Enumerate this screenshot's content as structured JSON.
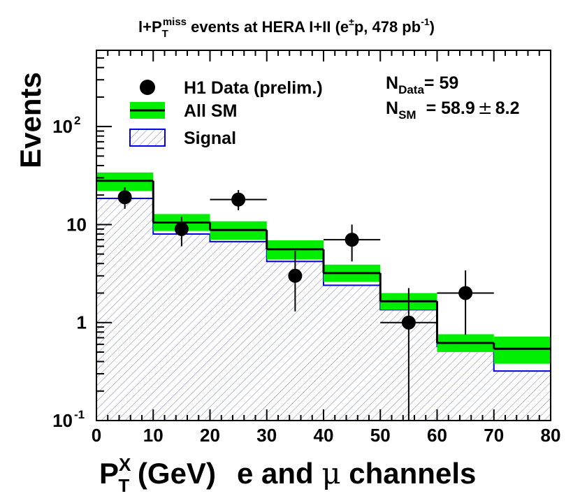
{
  "chart_data": {
    "type": "histogram",
    "title": {
      "pre": "l+P",
      "pt_sub": "T",
      "pt_sup": "miss",
      "mid": " events at HERA I+II (e",
      "pm": "±",
      "mid2": "p, 478 pb",
      "sup": "-1",
      "end": ")"
    },
    "ylabel": "Events",
    "xlabel": {
      "P": "P",
      "sup": "X",
      "sub": "T",
      "unit": " (GeV)",
      "channel_pre": "e and ",
      "mu": "μ",
      "channel_post": " channels"
    },
    "xlim": [
      0,
      80
    ],
    "ylim": [
      0.1,
      600
    ],
    "yscale": "log",
    "x_tick_labels": [
      "0",
      "10",
      "20",
      "30",
      "40",
      "50",
      "60",
      "70",
      "80"
    ],
    "y_tick_labels": [
      {
        "value": 0.1,
        "base": "10",
        "exp": "-1"
      },
      {
        "value": 1,
        "base": "1",
        "exp": ""
      },
      {
        "value": 10,
        "base": "10",
        "exp": ""
      },
      {
        "value": 100,
        "base": "10",
        "exp": "2"
      }
    ],
    "bin_edges": [
      0,
      10,
      20,
      30,
      40,
      50,
      60,
      70,
      80
    ],
    "all_sm": [
      28,
      10.5,
      8.8,
      5.6,
      3.2,
      1.65,
      0.62,
      0.54
    ],
    "all_sm_err_low": [
      22,
      8.6,
      7.0,
      4.4,
      2.6,
      1.35,
      0.5,
      0.38
    ],
    "all_sm_err_high": [
      34,
      12.8,
      10.8,
      6.9,
      3.9,
      2.0,
      0.76,
      0.72
    ],
    "signal": [
      18.5,
      8.0,
      6.7,
      4.2,
      2.4,
      1.35,
      0.57,
      0.32
    ],
    "data": {
      "x": [
        5,
        15,
        25,
        35,
        45,
        55,
        65
      ],
      "y": [
        19,
        9,
        18,
        3,
        7,
        1,
        2
      ],
      "y_low": [
        14.5,
        6.0,
        14.0,
        1.3,
        4.2,
        0.1,
        0.75
      ],
      "y_high": [
        24,
        12,
        22.5,
        5.4,
        10,
        2.25,
        3.4
      ],
      "x_err": [
        0,
        0,
        5,
        0,
        5,
        5,
        5
      ]
    },
    "legend": {
      "position": "top-left",
      "entries": [
        "H1 Data (prelim.)",
        "All SM",
        "Signal"
      ]
    },
    "annotations": {
      "n_data": {
        "N": "N",
        "sub": "Data",
        "text": "= 59"
      },
      "n_sm": {
        "N": "N",
        "sub": "SM",
        "value": "= 58.9",
        "pm": "±",
        "err": "8.2"
      }
    },
    "colors": {
      "sm_band": "#00ee00",
      "sm_line": "#000000",
      "signal_line": "#0000ee",
      "signal_hatch": "#6a6aa8",
      "data": "#000000"
    }
  }
}
